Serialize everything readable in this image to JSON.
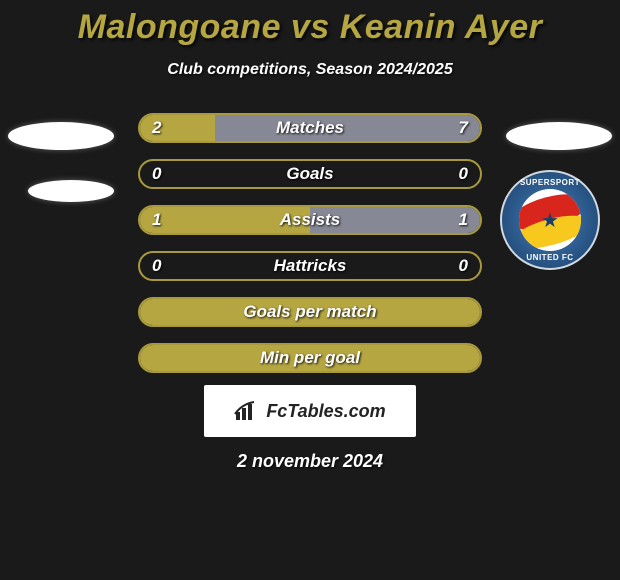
{
  "title": "Malongoane vs Keanin Ayer",
  "subtitle": "Club competitions, Season 2024/2025",
  "date": "2 november 2024",
  "footer_brand": "FcTables.com",
  "colors": {
    "accent": "#b5a642",
    "accent_border": "#a89a3c",
    "fill_yellow": "#b5a642",
    "fill_grey": "#878895",
    "background": "#1a1a1a",
    "text": "#ffffff"
  },
  "badge": {
    "top_text": "SUPERSPORT",
    "bottom_text": "UNITED FC",
    "inner_text": "SuperSport"
  },
  "bars": [
    {
      "label": "Matches",
      "left_val": "2",
      "right_val": "7",
      "left_pct": 22,
      "right_pct": 78,
      "left_color": "#b5a642",
      "right_color": "#878895"
    },
    {
      "label": "Goals",
      "left_val": "0",
      "right_val": "0",
      "left_pct": 0,
      "right_pct": 0,
      "left_color": "#b5a642",
      "right_color": "#878895"
    },
    {
      "label": "Assists",
      "left_val": "1",
      "right_val": "1",
      "left_pct": 50,
      "right_pct": 50,
      "left_color": "#b5a642",
      "right_color": "#878895"
    },
    {
      "label": "Hattricks",
      "left_val": "0",
      "right_val": "0",
      "left_pct": 0,
      "right_pct": 0,
      "left_color": "#b5a642",
      "right_color": "#878895"
    },
    {
      "label": "Goals per match",
      "left_val": "",
      "right_val": "",
      "left_pct": 100,
      "right_pct": 0,
      "left_color": "#b5a642",
      "right_color": "#878895"
    },
    {
      "label": "Min per goal",
      "left_val": "",
      "right_val": "",
      "left_pct": 100,
      "right_pct": 0,
      "left_color": "#b5a642",
      "right_color": "#878895"
    }
  ]
}
